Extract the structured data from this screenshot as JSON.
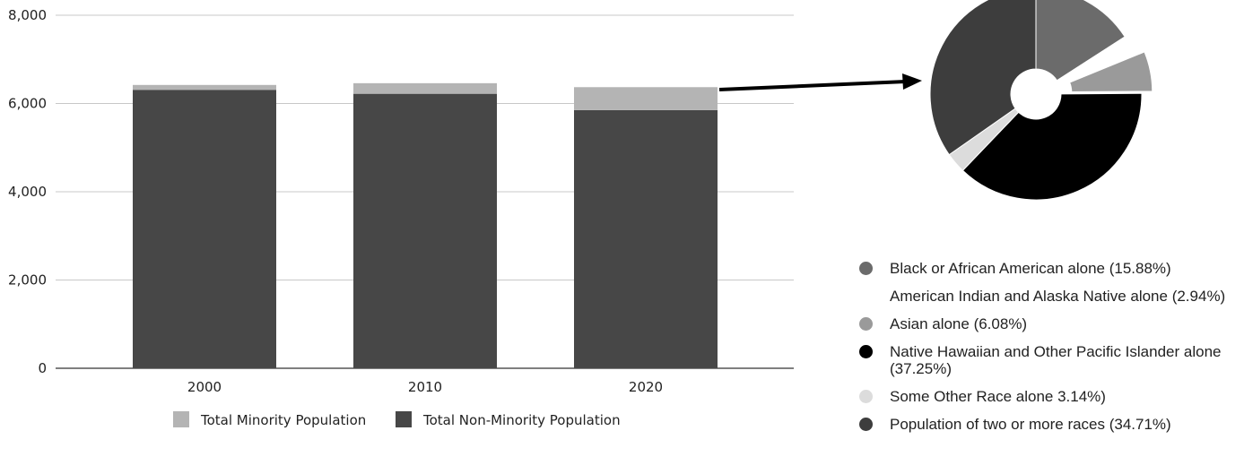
{
  "chart_data": [
    {
      "type": "bar",
      "stacked": true,
      "categories": [
        "2000",
        "2010",
        "2020"
      ],
      "series": [
        {
          "name": "Total Non-Minority Population",
          "values": [
            6310,
            6220,
            5850
          ],
          "color": "#474747"
        },
        {
          "name": "Total Minority Population",
          "values": [
            110,
            240,
            520
          ],
          "color": "#b4b4b4"
        }
      ],
      "y_ticks": [
        "0",
        "2,000",
        "4,000",
        "6,000",
        "8,000"
      ],
      "ylim": [
        0,
        8000
      ],
      "grid": true,
      "legend_position": "bottom"
    },
    {
      "type": "pie",
      "donut": true,
      "slices": [
        {
          "label": "Black or African American alone (15.88%)",
          "value": 15.88,
          "color": "#6b6b6b",
          "explode": false
        },
        {
          "label": "American Indian and Alaska Native alone (2.94%)",
          "value": 2.94,
          "color": "#ffffff",
          "explode": false
        },
        {
          "label": "Asian alone (6.08%)",
          "value": 6.08,
          "color": "#9a9a9a",
          "explode": true
        },
        {
          "label": "Native Hawaiian and Other Pacific Islander alone (37.25%)",
          "value": 37.25,
          "color": "#000000",
          "explode": false
        },
        {
          "label": "Some Other Race alone 3.14%)",
          "value": 3.14,
          "color": "#dcdcdc",
          "explode": false
        },
        {
          "label": "Population of two or more races (34.71%)",
          "value": 34.71,
          "color": "#3d3d3d",
          "explode": false
        }
      ],
      "legend_position": "bottom"
    }
  ]
}
